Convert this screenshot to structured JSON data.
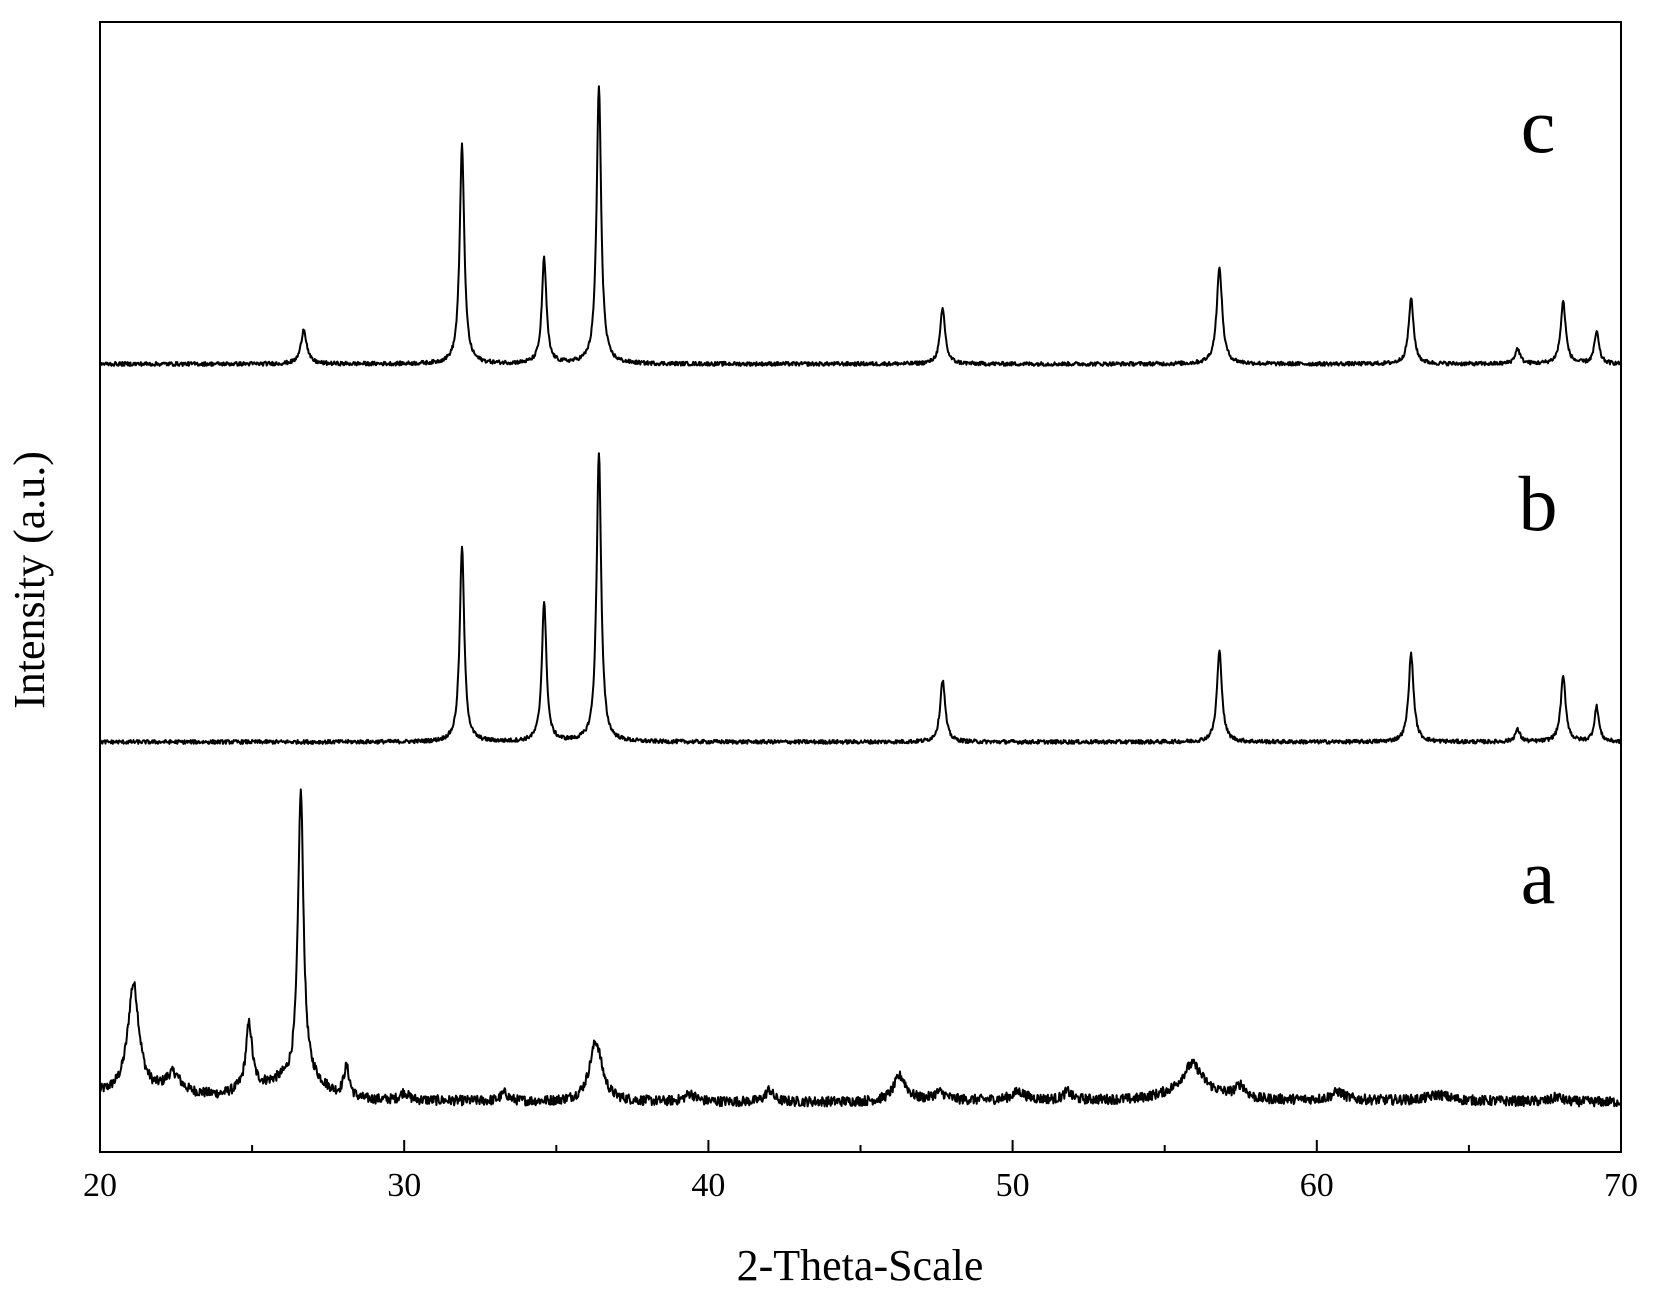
{
  "chart_data": {
    "type": "line",
    "title": "",
    "xlabel": "2-Theta-Scale",
    "ylabel": "Intensity (a.u.)",
    "xlim": [
      20,
      70
    ],
    "xticks": [
      20,
      30,
      40,
      50,
      60,
      70
    ],
    "yticks_shown": false,
    "grid": false,
    "legend": "none",
    "line_color": "#000000",
    "series": [
      {
        "name": "a",
        "baseline": 0,
        "noise": 5,
        "background": [
          [
            20,
            18
          ],
          [
            24,
            16
          ],
          [
            26,
            30
          ],
          [
            27,
            30
          ],
          [
            28,
            12
          ],
          [
            35,
            10
          ],
          [
            45,
            10
          ],
          [
            50,
            12
          ],
          [
            54,
            12
          ],
          [
            56,
            20
          ],
          [
            58,
            12
          ],
          [
            60,
            12
          ],
          [
            70,
            10
          ]
        ],
        "peaks": [
          {
            "pos": 21.1,
            "height": 110,
            "width": 0.45
          },
          {
            "pos": 22.4,
            "height": 20,
            "width": 0.6
          },
          {
            "pos": 24.9,
            "height": 65,
            "width": 0.25
          },
          {
            "pos": 26.6,
            "height": 290,
            "width": 0.22
          },
          {
            "pos": 28.1,
            "height": 32,
            "width": 0.25
          },
          {
            "pos": 30.0,
            "height": 8,
            "width": 0.3
          },
          {
            "pos": 33.3,
            "height": 8,
            "width": 0.3
          },
          {
            "pos": 36.3,
            "height": 60,
            "width": 0.5
          },
          {
            "pos": 39.4,
            "height": 8,
            "width": 0.4
          },
          {
            "pos": 42.0,
            "height": 12,
            "width": 0.3
          },
          {
            "pos": 46.3,
            "height": 25,
            "width": 0.5
          },
          {
            "pos": 47.6,
            "height": 8,
            "width": 0.5
          },
          {
            "pos": 50.2,
            "height": 8,
            "width": 0.5
          },
          {
            "pos": 51.8,
            "height": 8,
            "width": 0.3
          },
          {
            "pos": 55.9,
            "height": 28,
            "width": 0.8
          },
          {
            "pos": 57.5,
            "height": 12,
            "width": 0.4
          },
          {
            "pos": 60.7,
            "height": 8,
            "width": 0.5
          },
          {
            "pos": 64.0,
            "height": 6,
            "width": 0.8
          },
          {
            "pos": 67.9,
            "height": 5,
            "width": 0.3
          }
        ]
      },
      {
        "name": "b",
        "baseline": 0,
        "noise": 2,
        "background": [
          [
            20,
            0
          ],
          [
            70,
            0
          ]
        ],
        "peaks": [
          {
            "pos": 31.9,
            "height": 195,
            "width": 0.18
          },
          {
            "pos": 34.6,
            "height": 140,
            "width": 0.18
          },
          {
            "pos": 36.4,
            "height": 290,
            "width": 0.18
          },
          {
            "pos": 47.7,
            "height": 62,
            "width": 0.2
          },
          {
            "pos": 56.8,
            "height": 90,
            "width": 0.2
          },
          {
            "pos": 63.1,
            "height": 88,
            "width": 0.2
          },
          {
            "pos": 66.6,
            "height": 12,
            "width": 0.2
          },
          {
            "pos": 68.1,
            "height": 65,
            "width": 0.2
          },
          {
            "pos": 69.2,
            "height": 35,
            "width": 0.18
          }
        ]
      },
      {
        "name": "c",
        "baseline": 0,
        "noise": 2,
        "background": [
          [
            20,
            0
          ],
          [
            70,
            0
          ]
        ],
        "peaks": [
          {
            "pos": 26.7,
            "height": 35,
            "width": 0.22
          },
          {
            "pos": 31.9,
            "height": 220,
            "width": 0.18
          },
          {
            "pos": 34.6,
            "height": 105,
            "width": 0.18
          },
          {
            "pos": 36.4,
            "height": 278,
            "width": 0.18
          },
          {
            "pos": 47.7,
            "height": 55,
            "width": 0.2
          },
          {
            "pos": 56.8,
            "height": 95,
            "width": 0.22
          },
          {
            "pos": 63.1,
            "height": 65,
            "width": 0.2
          },
          {
            "pos": 66.6,
            "height": 15,
            "width": 0.2
          },
          {
            "pos": 68.1,
            "height": 62,
            "width": 0.2
          },
          {
            "pos": 69.2,
            "height": 32,
            "width": 0.18
          }
        ]
      }
    ]
  }
}
